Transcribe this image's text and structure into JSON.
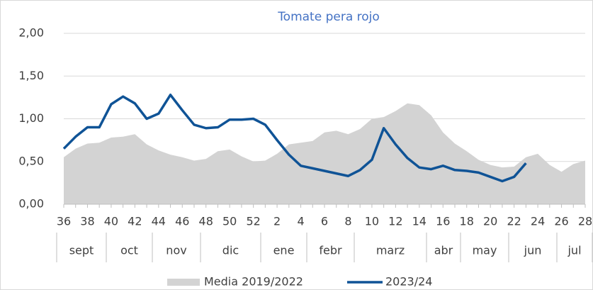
{
  "chart_data": {
    "type": "line",
    "title": "Tomate pera rojo",
    "categories": [
      "36",
      null,
      "38",
      null,
      "40",
      null,
      "42",
      null,
      "44",
      null,
      "46",
      null,
      "48",
      null,
      "50",
      null,
      "52",
      null,
      "2",
      null,
      "4",
      null,
      "6",
      null,
      "8",
      null,
      "10",
      null,
      "12",
      null,
      "14",
      null,
      "16",
      null,
      "18",
      null,
      "20",
      null,
      "22",
      null,
      "24",
      null,
      "26",
      null,
      "28"
    ],
    "months": [
      "sept",
      "oct",
      "nov",
      "dic",
      "ene",
      "febr",
      "marz",
      "abr",
      "may",
      "jun",
      "jul"
    ],
    "series": [
      {
        "name": "Media 2019/2022",
        "type": "area",
        "color": "#d3d3d3",
        "values": [
          0.55,
          0.65,
          0.71,
          0.72,
          0.78,
          0.79,
          0.82,
          0.7,
          0.63,
          0.58,
          0.55,
          0.51,
          0.53,
          0.62,
          0.64,
          0.56,
          0.5,
          0.51,
          0.59,
          0.7,
          0.72,
          0.74,
          0.84,
          0.86,
          0.82,
          0.88,
          1.0,
          1.02,
          1.09,
          1.18,
          1.16,
          1.04,
          0.84,
          0.71,
          0.62,
          0.52,
          0.46,
          0.43,
          0.44,
          0.55,
          0.59,
          0.46,
          0.38,
          0.47,
          0.51
        ]
      },
      {
        "name": "2023/24",
        "type": "line",
        "color": "#0f5396",
        "values": [
          0.65,
          0.79,
          0.9,
          0.9,
          1.17,
          1.26,
          1.18,
          1.0,
          1.06,
          1.28,
          1.1,
          0.93,
          0.89,
          0.9,
          0.99,
          0.99,
          1.0,
          0.93,
          0.75,
          0.58,
          0.45,
          0.42,
          0.39,
          0.36,
          0.33,
          0.4,
          0.52,
          0.89,
          0.7,
          0.54,
          0.43,
          0.41,
          0.45,
          0.4,
          0.39,
          0.37,
          0.32,
          0.27,
          0.32,
          0.48,
          null,
          null,
          null,
          null,
          null
        ]
      }
    ],
    "ylim": [
      0,
      2
    ],
    "yticks": [
      {
        "value": 0,
        "label": "0,00"
      },
      {
        "value": 0.5,
        "label": "0,50"
      },
      {
        "value": 1,
        "label": "1,00"
      },
      {
        "value": 1.5,
        "label": "1,50"
      },
      {
        "value": 2,
        "label": "2,00"
      }
    ],
    "grid": true,
    "legend": "bottom"
  }
}
